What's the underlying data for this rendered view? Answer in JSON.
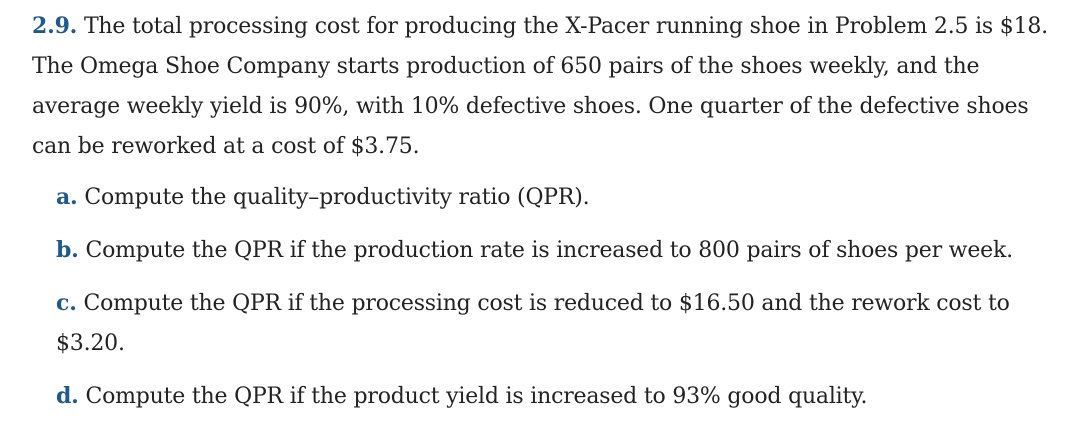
{
  "problem": {
    "number": "2.9.",
    "text": "The total processing cost for producing the X-Pacer running shoe in Problem 2.5 is $18. The Omega Shoe Company starts production of 650 pairs of the shoes weekly, and the average weekly yield is 90%, with 10% defective shoes. One quarter of the defective shoes can be reworked at a cost of $3.75.",
    "parts": [
      {
        "letter": "a.",
        "text": "Compute the quality–productivity ratio (QPR)."
      },
      {
        "letter": "b.",
        "text": "Compute the QPR if the production rate is increased to 800 pairs of shoes per week."
      },
      {
        "letter": "c.",
        "text": "Compute the QPR if the processing cost is reduced to $16.50 and the rework cost to $3.20."
      },
      {
        "letter": "d.",
        "text": "Compute the QPR if the product yield is increased to 93% good quality."
      }
    ]
  },
  "colors": {
    "accent": "#1f5a8a",
    "text": "#222222"
  }
}
